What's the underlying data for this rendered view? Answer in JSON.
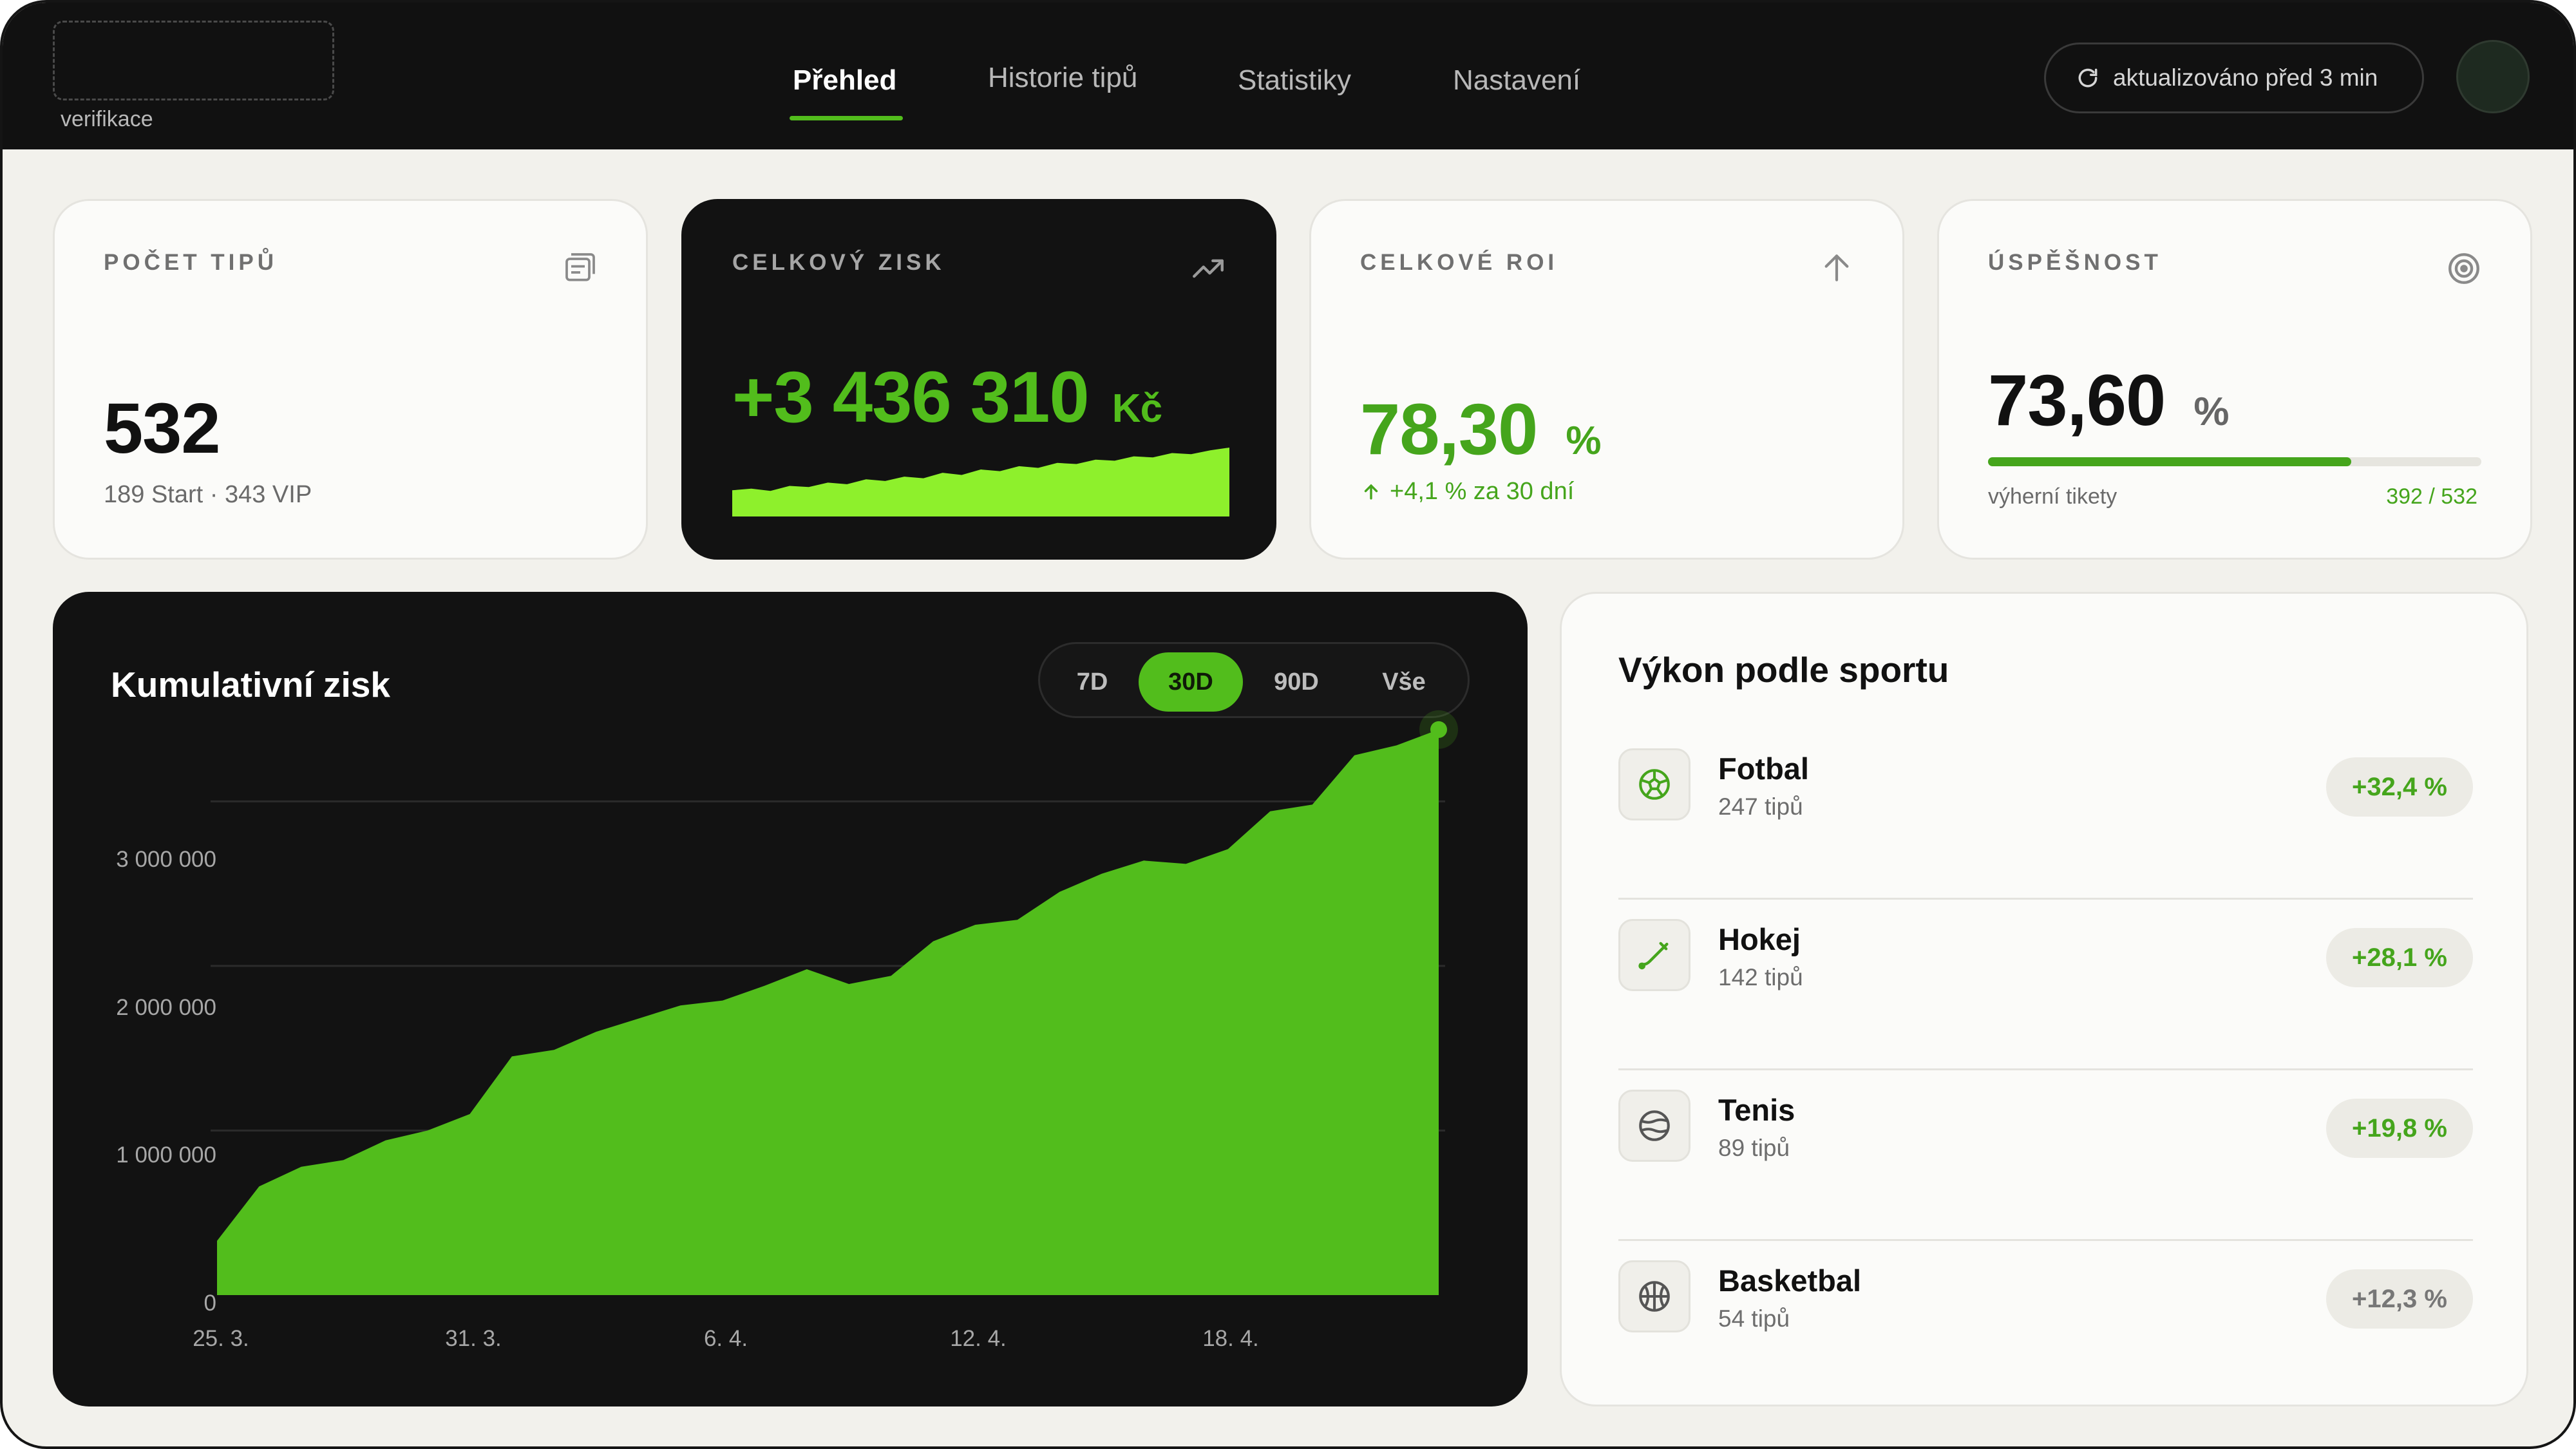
{
  "header": {
    "logo_text": "verifikace",
    "nav": [
      {
        "label": "Přehled",
        "active": true
      },
      {
        "label": "Historie tipů",
        "active": false
      },
      {
        "label": "Statistiky",
        "active": false
      },
      {
        "label": "Nastavení",
        "active": false
      }
    ],
    "update_status": "aktualizováno před 3 min",
    "icons": {
      "refresh": "refresh-icon",
      "avatar": "avatar"
    }
  },
  "stats": {
    "tips": {
      "label": "POČET TIPŮ",
      "value": "532",
      "sub": "189 Start · 343 VIP",
      "icon": "list-icon"
    },
    "profit": {
      "label": "CELKOVÝ ZISK",
      "value": "+3 436 310",
      "unit": "Kč",
      "icon": "trending-up-icon",
      "sparkline": [
        0.22,
        0.25,
        0.21,
        0.3,
        0.28,
        0.36,
        0.33,
        0.42,
        0.39,
        0.47,
        0.44,
        0.54,
        0.5,
        0.6,
        0.57,
        0.66,
        0.63,
        0.72,
        0.7,
        0.78,
        0.76,
        0.84,
        0.82,
        0.9,
        0.88,
        0.95,
        1.0
      ]
    },
    "roi": {
      "label": "CELKOVÉ ROI",
      "value": "78,30",
      "unit": "%",
      "change": "+4,1 % za 30 dní",
      "icon": "arrow-up-icon"
    },
    "success": {
      "label": "ÚSPĚŠNOST",
      "value": "73,60",
      "unit": "%",
      "progress": 0.736,
      "caption": "výherní tikety",
      "ratio": "392 / 532",
      "icon": "target-icon"
    }
  },
  "chart": {
    "title": "Kumulativní zisk",
    "ranges": [
      "7D",
      "30D",
      "90D",
      "Vše"
    ],
    "active_range": "30D"
  },
  "chart_data": {
    "type": "area",
    "title": "Kumulativní zisk",
    "x_ticks": [
      "25. 3.",
      "31. 3.",
      "6. 4.",
      "12. 4.",
      "18. 4."
    ],
    "x_tick_index": [
      0,
      6,
      12,
      18,
      24
    ],
    "y_ticks": [
      "0",
      "1 000 000",
      "2 000 000",
      "3 000 000"
    ],
    "y_tick_values": [
      0,
      1000000,
      2000000,
      3000000
    ],
    "ylim": [
      0,
      3600000
    ],
    "values": [
      330000,
      660000,
      780000,
      820000,
      940000,
      1000000,
      1100000,
      1450000,
      1490000,
      1600000,
      1680000,
      1760000,
      1790000,
      1880000,
      1980000,
      1890000,
      1940000,
      2150000,
      2250000,
      2280000,
      2450000,
      2560000,
      2640000,
      2620000,
      2710000,
      2940000,
      2980000,
      3280000,
      3340000,
      3436310
    ],
    "color": "#52bd1c"
  },
  "sports": {
    "title": "Výkon podle sportu",
    "items": [
      {
        "name": "Fotbal",
        "count": "247 tipů",
        "change": "+32,4 %",
        "icon": "soccer-ball-icon",
        "color": "#45a51c"
      },
      {
        "name": "Hokej",
        "count": "142 tipů",
        "change": "+28,1 %",
        "icon": "hockey-stick-icon",
        "color": "#45a51c"
      },
      {
        "name": "Tenis",
        "count": "89 tipů",
        "change": "+19,8 %",
        "icon": "tennis-ball-icon",
        "color": "#45a51c"
      },
      {
        "name": "Basketbal",
        "count": "54 tipů",
        "change": "+12,3 %",
        "icon": "basketball-icon",
        "color": "#777777"
      }
    ]
  },
  "colors": {
    "accent": "#52bd1c",
    "accent_text": "#45a51c",
    "dark": "#121212",
    "background": "#f2f1ec"
  }
}
